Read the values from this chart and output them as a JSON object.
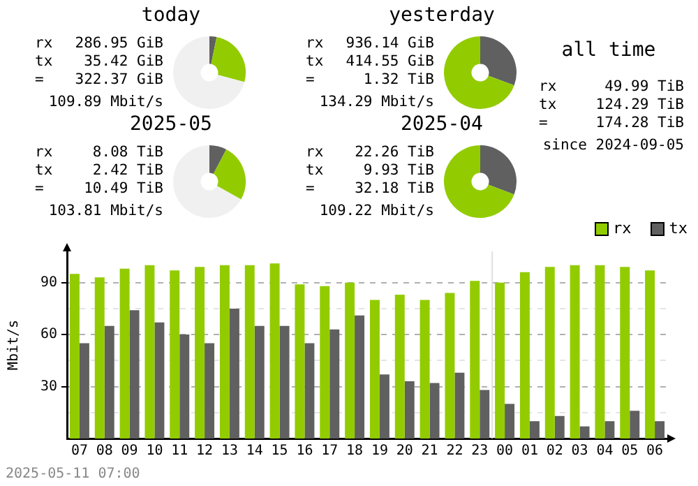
{
  "chart_data": [
    {
      "type": "donut",
      "title": "today",
      "categories": [
        null,
        null,
        null
      ],
      "values": [
        3.2,
        26.0,
        70.8
      ],
      "colors": [
        "#606060",
        "#92cc00",
        "#f0f0f0"
      ],
      "annotations": [
        "rx",
        "286.95 GiB",
        "tx",
        "35.42 GiB",
        "=",
        "322.37 GiB",
        "109.89 Mbit/s"
      ]
    },
    {
      "type": "donut",
      "title": "yesterday",
      "categories": [
        null,
        null
      ],
      "values": [
        30.7,
        69.3
      ],
      "colors": [
        "#606060",
        "#92cc00"
      ],
      "annotations": [
        "rx",
        "936.14 GiB",
        "tx",
        "414.55 GiB",
        "=",
        "1.32 TiB",
        "134.29 Mbit/s"
      ]
    },
    {
      "type": "other",
      "title": "all time",
      "annotations": [
        "rx",
        "49.99 TiB",
        "tx",
        "124.29 TiB",
        "=",
        "174.28 TiB",
        "since 2024-09-05"
      ]
    },
    {
      "type": "donut",
      "title": "2025-05",
      "categories": [
        null,
        null,
        null
      ],
      "values": [
        7.7,
        25.5,
        66.8
      ],
      "colors": [
        "#606060",
        "#92cc00",
        "#f0f0f0"
      ],
      "annotations": [
        "rx",
        "8.08 TiB",
        "tx",
        "2.42 TiB",
        "=",
        "10.49 TiB",
        "103.81 Mbit/s"
      ]
    },
    {
      "type": "donut",
      "title": "2025-04",
      "categories": [
        null,
        null
      ],
      "values": [
        30.8,
        69.2
      ],
      "colors": [
        "#606060",
        "#92cc00"
      ],
      "annotations": [
        "rx",
        "22.26 TiB",
        "tx",
        "9.93 TiB",
        "=",
        "32.18 TiB",
        "109.22 Mbit/s"
      ]
    },
    {
      "type": "bar",
      "ylabel": "Mbit/s",
      "categories": [
        "07",
        "08",
        "09",
        "10",
        "11",
        "12",
        "13",
        "14",
        "15",
        "16",
        "17",
        "18",
        "19",
        "20",
        "21",
        "22",
        "23",
        "00",
        "01",
        "02",
        "03",
        "04",
        "05",
        "06"
      ],
      "series": [
        {
          "name": "rx",
          "color": "#92cc00",
          "values": [
            95,
            93,
            98,
            100,
            97,
            99,
            100,
            100,
            101,
            89,
            88,
            90,
            80,
            83,
            80,
            84,
            91,
            90,
            96,
            99,
            100,
            100,
            99,
            97
          ]
        },
        {
          "name": "tx",
          "color": "#606060",
          "values": [
            55,
            65,
            74,
            67,
            60,
            55,
            75,
            65,
            65,
            55,
            63,
            71,
            37,
            33,
            32,
            38,
            28,
            20,
            10,
            13,
            7,
            10,
            16,
            10
          ]
        }
      ],
      "ylim": [
        0,
        108
      ],
      "yticks": [
        {
          "value": 15,
          "label": null
        },
        30,
        {
          "value": 45,
          "label": null
        },
        60,
        {
          "value": 75,
          "label": null
        },
        90
      ],
      "grid": "y",
      "legend": "top right",
      "ref_lines": [
        {
          "axis": "x",
          "value": "00",
          "color": "#e0e0e0"
        }
      ],
      "annotations": [
        "2025-05-11 07:00"
      ]
    }
  ]
}
